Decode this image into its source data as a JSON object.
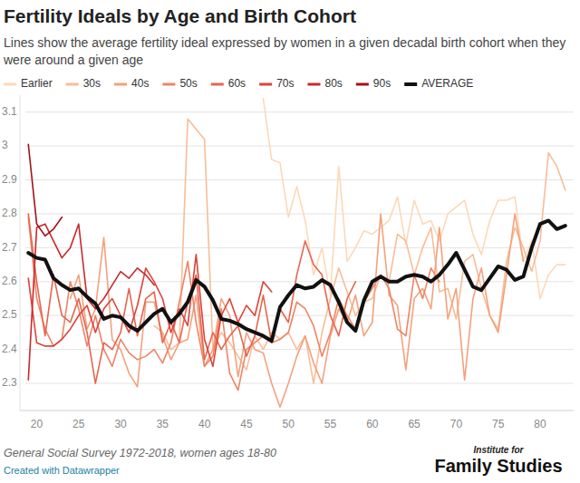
{
  "chart_data": {
    "type": "line",
    "title": "Fertility Ideals by Age and Birth Cohort",
    "subtitle": "Lines show the average fertility ideal expressed by women in a given decadal birth cohort when they were around a given age",
    "source": "General Social Survey 1972-2018, women ages 18-80",
    "credit": "Created with Datawrapper",
    "branding": [
      "Institute for",
      "Family Studies"
    ],
    "legend": "top-left",
    "grid": true,
    "xlim": [
      18,
      84
    ],
    "xticks": [
      20,
      25,
      30,
      35,
      40,
      45,
      50,
      55,
      60,
      65,
      70,
      75,
      80
    ],
    "ylim": [
      2.22,
      3.15
    ],
    "yticks": [
      2.3,
      2.4,
      2.5,
      2.6,
      2.7,
      2.8,
      2.9,
      3,
      3.1
    ],
    "x": [
      19,
      20,
      21,
      22,
      23,
      24,
      25,
      26,
      27,
      28,
      29,
      30,
      31,
      32,
      33,
      34,
      35,
      36,
      37,
      38,
      39,
      40,
      41,
      42,
      43,
      44,
      45,
      46,
      47,
      48,
      49,
      50,
      51,
      52,
      53,
      54,
      55,
      56,
      57,
      58,
      59,
      60,
      61,
      62,
      63,
      64,
      65,
      66,
      67,
      68,
      69,
      70,
      71,
      72,
      73,
      74,
      75,
      76,
      77,
      78,
      79,
      80,
      81,
      82,
      83
    ],
    "series": [
      {
        "name": "Earlier",
        "color": "#fcd9b8",
        "values": [
          null,
          null,
          null,
          null,
          null,
          null,
          null,
          null,
          null,
          null,
          null,
          null,
          null,
          null,
          null,
          null,
          null,
          null,
          null,
          null,
          null,
          null,
          null,
          null,
          null,
          null,
          null,
          null,
          3.14,
          2.96,
          2.95,
          2.79,
          2.88,
          2.78,
          2.62,
          2.7,
          2.56,
          2.94,
          2.66,
          2.7,
          2.75,
          2.74,
          2.76,
          2.78,
          2.85,
          2.71,
          2.84,
          2.77,
          2.78,
          2.72,
          2.8,
          2.82,
          2.84,
          2.74,
          2.68,
          2.78,
          2.84,
          2.84,
          2.85,
          2.66,
          2.72,
          2.55,
          2.62,
          2.65,
          2.65
        ]
      },
      {
        "name": "30s",
        "color": "#f8bd98",
        "values": [
          null,
          null,
          null,
          null,
          null,
          null,
          null,
          null,
          null,
          null,
          null,
          null,
          null,
          null,
          null,
          2.47,
          2.45,
          2.4,
          2.42,
          3.08,
          3.05,
          3.02,
          2.4,
          2.45,
          2.42,
          2.38,
          2.34,
          2.44,
          2.4,
          2.45,
          2.43,
          2.45,
          2.4,
          2.44,
          2.3,
          2.45,
          2.55,
          2.64,
          2.57,
          2.5,
          2.54,
          2.55,
          2.62,
          2.6,
          2.74,
          2.72,
          2.62,
          2.7,
          2.76,
          2.57,
          2.58,
          2.49,
          2.66,
          2.68,
          2.58,
          2.5,
          2.46,
          2.66,
          2.76,
          2.7,
          2.63,
          2.72,
          2.98,
          2.94,
          2.87
        ]
      },
      {
        "name": "40s",
        "color": "#f4a17c",
        "values": [
          null,
          null,
          null,
          null,
          null,
          2.55,
          2.62,
          2.46,
          2.52,
          2.73,
          2.43,
          2.4,
          2.33,
          2.29,
          2.54,
          2.54,
          2.44,
          2.37,
          2.42,
          2.43,
          2.56,
          2.35,
          2.4,
          2.55,
          2.5,
          2.32,
          2.45,
          2.4,
          2.39,
          2.3,
          2.23,
          2.3,
          2.38,
          2.44,
          2.36,
          2.3,
          2.44,
          2.52,
          2.48,
          2.56,
          2.44,
          2.48,
          2.8,
          2.56,
          2.53,
          2.34,
          2.55,
          2.58,
          2.52,
          2.76,
          2.49,
          2.58,
          2.31,
          2.55,
          2.64,
          2.5,
          2.45,
          2.62,
          2.8,
          2.66,
          null,
          null,
          null,
          null,
          null
        ]
      },
      {
        "name": "50s",
        "color": "#ee8465",
        "values": [
          2.79,
          2.55,
          2.46,
          2.41,
          2.43,
          2.6,
          2.52,
          2.41,
          2.5,
          2.4,
          2.35,
          2.43,
          2.39,
          2.37,
          2.38,
          2.4,
          2.36,
          2.42,
          2.54,
          2.66,
          2.48,
          2.35,
          2.38,
          2.52,
          2.33,
          2.28,
          2.4,
          2.42,
          2.44,
          2.42,
          2.43,
          2.45,
          2.54,
          2.52,
          2.47,
          2.38,
          2.45,
          2.55,
          2.5,
          2.46,
          2.54,
          2.58,
          2.62,
          2.58,
          2.46,
          2.44,
          2.62,
          2.55,
          2.64,
          2.6,
          null,
          null,
          null,
          null,
          null,
          null,
          null,
          null,
          null,
          null,
          null,
          null,
          null,
          null,
          null
        ]
      },
      {
        "name": "60s",
        "color": "#e6654f",
        "values": [
          2.8,
          2.6,
          2.44,
          2.62,
          2.5,
          2.48,
          2.55,
          2.45,
          2.3,
          2.42,
          2.4,
          2.45,
          2.58,
          2.44,
          2.55,
          2.57,
          2.42,
          2.48,
          2.42,
          2.54,
          2.62,
          2.37,
          2.45,
          2.4,
          2.44,
          2.47,
          2.38,
          2.44,
          2.56,
          2.42,
          2.52,
          2.48,
          2.62,
          2.72,
          2.65,
          2.62,
          2.5,
          2.44,
          2.55,
          2.6,
          null,
          null,
          null,
          null,
          null,
          null,
          null,
          null,
          null,
          null,
          null,
          null,
          null,
          null,
          null,
          null,
          null,
          null,
          null,
          null,
          null,
          null,
          null,
          null,
          null
        ]
      },
      {
        "name": "70s",
        "color": "#db443a",
        "values": [
          2.61,
          2.42,
          2.41,
          2.41,
          2.43,
          2.46,
          2.5,
          2.53,
          2.45,
          2.52,
          2.55,
          2.5,
          2.45,
          2.53,
          2.64,
          2.6,
          2.55,
          2.45,
          2.52,
          2.47,
          2.68,
          2.43,
          2.35,
          2.5,
          2.55,
          2.48,
          2.53,
          2.5,
          2.6,
          2.57,
          null,
          null,
          null,
          null,
          null,
          null,
          null,
          null,
          null,
          null,
          null,
          null,
          null,
          null,
          null,
          null,
          null,
          null,
          null,
          null,
          null,
          null,
          null,
          null,
          null,
          null,
          null,
          null,
          null,
          null,
          null,
          null,
          null,
          null,
          null
        ]
      },
      {
        "name": "80s",
        "color": "#c72a2d",
        "values": [
          2.31,
          2.76,
          2.77,
          2.72,
          2.67,
          2.7,
          2.77,
          2.55,
          2.52,
          2.55,
          2.59,
          2.63,
          2.61,
          2.64,
          2.62,
          2.59,
          null,
          null,
          null,
          null,
          null,
          null,
          null,
          null,
          null,
          null,
          null,
          null,
          null,
          null,
          null,
          null,
          null,
          null,
          null,
          null,
          null,
          null,
          null,
          null,
          null,
          null,
          null,
          null,
          null,
          null,
          null,
          null,
          null,
          null,
          null,
          null,
          null,
          null,
          null,
          null,
          null,
          null,
          null,
          null,
          null,
          null,
          null,
          null,
          null
        ]
      },
      {
        "name": "90s",
        "color": "#a6101a",
        "values": [
          3.005,
          2.77,
          2.735,
          2.755,
          2.79,
          null,
          null,
          null,
          null,
          null,
          null,
          null,
          null,
          null,
          null,
          null,
          null,
          null,
          null,
          null,
          null,
          null,
          null,
          null,
          null,
          null,
          null,
          null,
          null,
          null,
          null,
          null,
          null,
          null,
          null,
          null,
          null,
          null,
          null,
          null,
          null,
          null,
          null,
          null,
          null,
          null,
          null,
          null,
          null,
          null,
          null,
          null,
          null,
          null,
          null,
          null,
          null,
          null,
          null,
          null,
          null,
          null,
          null,
          null,
          null
        ]
      },
      {
        "name": "AVERAGE",
        "color": "#111111",
        "values": [
          2.685,
          2.67,
          2.665,
          2.61,
          2.59,
          2.575,
          2.58,
          2.555,
          2.535,
          2.49,
          2.5,
          2.495,
          2.47,
          2.455,
          2.48,
          2.505,
          2.52,
          2.48,
          2.505,
          2.54,
          2.605,
          2.585,
          2.545,
          2.49,
          2.485,
          2.475,
          2.46,
          2.45,
          2.44,
          2.425,
          2.525,
          2.56,
          2.59,
          2.58,
          2.585,
          2.605,
          2.59,
          2.54,
          2.48,
          2.455,
          2.545,
          2.6,
          2.615,
          2.6,
          2.6,
          2.615,
          2.62,
          2.615,
          2.6,
          2.62,
          2.65,
          2.685,
          2.635,
          2.585,
          2.575,
          2.61,
          2.645,
          2.635,
          2.605,
          2.615,
          2.7,
          2.77,
          2.78,
          2.755,
          2.765
        ]
      }
    ]
  }
}
